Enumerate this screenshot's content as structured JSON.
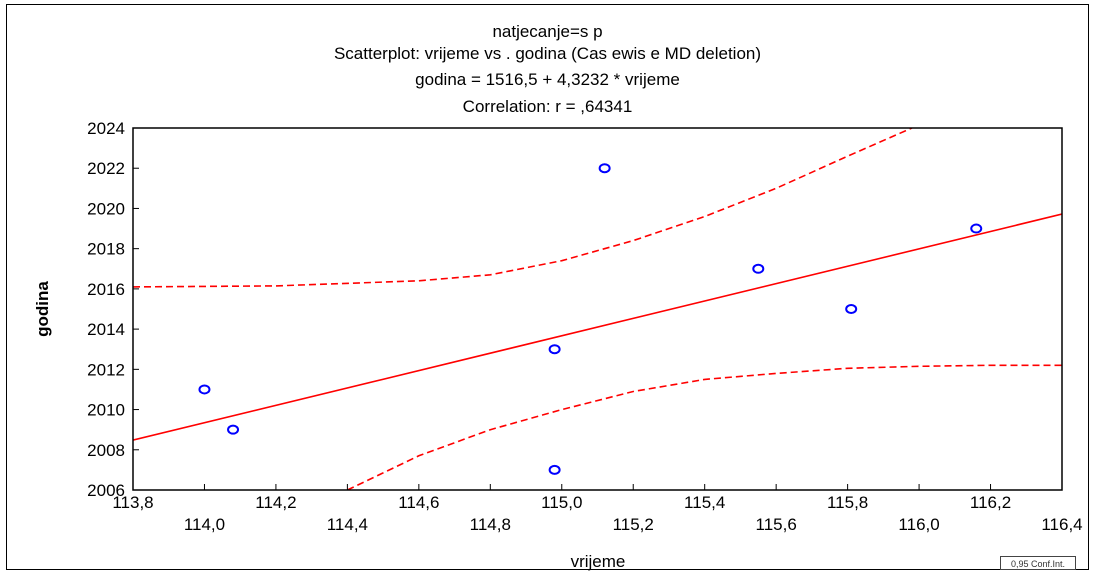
{
  "chart_data": {
    "type": "scatter",
    "title_lines": [
      "natjecanje=s p",
      "Scatterplot: vrijeme vs . godina  (Cas ewis e MD deletion)",
      "godina   = 1516,5 + 4,3232 * vrijeme",
      "Correlation: r = ,64341"
    ],
    "xlabel": "vrijeme",
    "ylabel": "godina",
    "xlim": [
      113.8,
      116.4
    ],
    "ylim": [
      2006,
      2024
    ],
    "x_ticks_upper": [
      "113,8",
      "114,2",
      "114,6",
      "115,0",
      "115,4",
      "115,8",
      "116,2"
    ],
    "x_ticks_lower": [
      "114,0",
      "114,4",
      "114,8",
      "115,2",
      "115,6",
      "116,0",
      "116,4"
    ],
    "y_ticks": [
      "2006",
      "2008",
      "2010",
      "2012",
      "2014",
      "2016",
      "2018",
      "2020",
      "2022",
      "2024"
    ],
    "points": [
      {
        "x": 114.0,
        "y": 2011
      },
      {
        "x": 114.08,
        "y": 2009
      },
      {
        "x": 114.98,
        "y": 2013
      },
      {
        "x": 114.98,
        "y": 2007
      },
      {
        "x": 115.12,
        "y": 2022
      },
      {
        "x": 115.55,
        "y": 2017
      },
      {
        "x": 115.81,
        "y": 2015
      },
      {
        "x": 116.16,
        "y": 2019
      }
    ],
    "regression": {
      "intercept": 1516.5,
      "slope": 4.3232
    },
    "ci_upper": [
      {
        "x": 113.8,
        "y": 2016.1
      },
      {
        "x": 114.2,
        "y": 2016.15
      },
      {
        "x": 114.6,
        "y": 2016.4
      },
      {
        "x": 114.8,
        "y": 2016.7
      },
      {
        "x": 115.0,
        "y": 2017.4
      },
      {
        "x": 115.2,
        "y": 2018.4
      },
      {
        "x": 115.4,
        "y": 2019.6
      },
      {
        "x": 115.6,
        "y": 2021.0
      },
      {
        "x": 115.8,
        "y": 2022.6
      },
      {
        "x": 115.98,
        "y": 2024
      }
    ],
    "ci_lower": [
      {
        "x": 114.4,
        "y": 2006
      },
      {
        "x": 114.6,
        "y": 2007.7
      },
      {
        "x": 114.8,
        "y": 2009.0
      },
      {
        "x": 115.0,
        "y": 2010.0
      },
      {
        "x": 115.2,
        "y": 2010.9
      },
      {
        "x": 115.4,
        "y": 2011.5
      },
      {
        "x": 115.6,
        "y": 2011.8
      },
      {
        "x": 115.8,
        "y": 2012.05
      },
      {
        "x": 116.0,
        "y": 2012.15
      },
      {
        "x": 116.2,
        "y": 2012.2
      },
      {
        "x": 116.4,
        "y": 2012.2
      }
    ],
    "grid": false,
    "colors": {
      "points": "#0000ff",
      "fit": "#ff0000",
      "ci": "#ff0000"
    },
    "badge": "0,95 Conf.Int."
  }
}
